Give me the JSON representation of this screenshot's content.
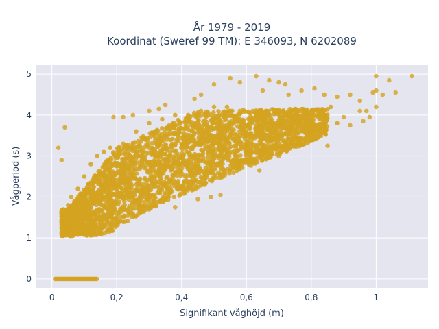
{
  "chart_data": {
    "type": "scatter",
    "title_line1": "År 1979 - 2019",
    "title_line2": "Koordinat (Sweref 99 TM): E 346093, N 6202089",
    "xlabel": "Signifikant våghöjd (m)",
    "ylabel": "Vågperiod (s)",
    "xlim": [
      -0.05,
      1.16
    ],
    "ylim": [
      -0.22,
      5.22
    ],
    "xticks": [
      0,
      0.2,
      0.4,
      0.6,
      0.8,
      1
    ],
    "xtick_labels": [
      "0",
      "0,2",
      "0,4",
      "0,6",
      "0,8",
      "1"
    ],
    "yticks": [
      0,
      1,
      2,
      3,
      4,
      5
    ],
    "ytick_labels": [
      "0",
      "1",
      "2",
      "3",
      "4",
      "5"
    ],
    "grid": true,
    "legend": "none",
    "marker_color": "#D4A320",
    "plot_bg": "#E5E5F0",
    "series": [
      {
        "values_core": [
          [
            0.03,
            1.1
          ],
          [
            0.03,
            1.6
          ],
          [
            0.04,
            1.3
          ],
          [
            0.05,
            1.8
          ],
          [
            0.06,
            2.0
          ],
          [
            0.07,
            1.2
          ],
          [
            0.08,
            2.2
          ],
          [
            0.09,
            1.1
          ],
          [
            0.1,
            2.5
          ],
          [
            0.11,
            1.15
          ],
          [
            0.12,
            2.8
          ],
          [
            0.13,
            1.2
          ],
          [
            0.14,
            3.0
          ],
          [
            0.15,
            1.3
          ],
          [
            0.16,
            3.1
          ],
          [
            0.17,
            1.4
          ],
          [
            0.18,
            3.2
          ],
          [
            0.2,
            1.5
          ],
          [
            0.22,
            3.3
          ],
          [
            0.24,
            1.6
          ],
          [
            0.26,
            3.6
          ],
          [
            0.28,
            1.7
          ],
          [
            0.3,
            3.8
          ],
          [
            0.32,
            1.8
          ],
          [
            0.34,
            3.9
          ],
          [
            0.36,
            2.0
          ],
          [
            0.38,
            4.0
          ],
          [
            0.4,
            2.2
          ],
          [
            0.42,
            4.0
          ],
          [
            0.44,
            2.4
          ],
          [
            0.46,
            4.1
          ],
          [
            0.48,
            2.6
          ],
          [
            0.5,
            4.2
          ],
          [
            0.52,
            2.8
          ],
          [
            0.54,
            4.2
          ],
          [
            0.56,
            2.9
          ],
          [
            0.58,
            4.1
          ],
          [
            0.6,
            3.0
          ],
          [
            0.62,
            4.1
          ],
          [
            0.64,
            3.1
          ],
          [
            0.66,
            4.1
          ],
          [
            0.68,
            3.2
          ],
          [
            0.7,
            4.1
          ],
          [
            0.72,
            3.3
          ],
          [
            0.74,
            4.0
          ],
          [
            0.76,
            3.4
          ],
          [
            0.78,
            4.1
          ],
          [
            0.8,
            3.5
          ],
          [
            0.82,
            4.1
          ],
          [
            0.84,
            3.6
          ],
          [
            0.86,
            4.2
          ],
          [
            0.88,
            3.8
          ]
        ],
        "outliers": [
          [
            0.02,
            3.2
          ],
          [
            0.03,
            2.9
          ],
          [
            0.04,
            3.7
          ],
          [
            0.55,
            4.9
          ],
          [
            0.5,
            4.75
          ],
          [
            0.58,
            4.8
          ],
          [
            0.63,
            4.95
          ],
          [
            0.67,
            4.85
          ],
          [
            0.7,
            4.8
          ],
          [
            0.72,
            4.75
          ],
          [
            0.77,
            4.6
          ],
          [
            0.81,
            4.65
          ],
          [
            0.84,
            4.5
          ],
          [
            0.88,
            4.45
          ],
          [
            0.92,
            4.5
          ],
          [
            0.95,
            4.35
          ],
          [
            0.97,
            4.1
          ],
          [
            0.99,
            4.55
          ],
          [
            1.0,
            4.6
          ],
          [
            1.02,
            4.5
          ],
          [
            1.04,
            4.85
          ],
          [
            1.06,
            4.55
          ],
          [
            1.0,
            4.95
          ],
          [
            1.11,
            4.95
          ],
          [
            0.96,
            3.85
          ],
          [
            0.98,
            3.95
          ],
          [
            1.0,
            4.2
          ],
          [
            0.95,
            4.1
          ],
          [
            0.6,
            2.85
          ],
          [
            0.64,
            2.65
          ],
          [
            0.52,
            2.05
          ],
          [
            0.49,
            2.0
          ],
          [
            0.45,
            1.95
          ],
          [
            0.38,
            1.75
          ],
          [
            0.35,
            1.95
          ],
          [
            0.7,
            3.0
          ],
          [
            0.82,
            3.45
          ],
          [
            0.85,
            3.25
          ],
          [
            0.92,
            3.75
          ],
          [
            0.9,
            3.95
          ],
          [
            0.19,
            3.95
          ],
          [
            0.22,
            3.95
          ],
          [
            0.25,
            4.0
          ],
          [
            0.3,
            4.1
          ],
          [
            0.33,
            4.15
          ],
          [
            0.35,
            4.25
          ],
          [
            0.46,
            4.5
          ],
          [
            0.44,
            4.4
          ],
          [
            0.65,
            4.6
          ],
          [
            0.73,
            4.5
          ]
        ],
        "zero_period_x_range": [
          0.01,
          0.14
        ]
      }
    ]
  }
}
